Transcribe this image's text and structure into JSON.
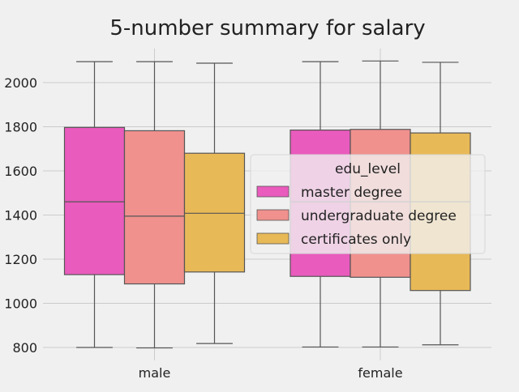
{
  "chart_data": {
    "type": "boxplot",
    "title": "5-number summary for salary",
    "xlabel": "",
    "ylabel": "",
    "categories": [
      "male",
      "female"
    ],
    "yticks": [
      800,
      1000,
      1200,
      1400,
      1600,
      1800,
      2000
    ],
    "ylim": [
      760,
      2160
    ],
    "grid": true,
    "legend": {
      "title": "edu_level",
      "placement": "center-right"
    },
    "series": [
      {
        "name": "master degree",
        "color": "#e95bbc",
        "boxes": [
          {
            "min": 800,
            "q1": 1130,
            "median": 1460,
            "q3": 1797,
            "max": 2095
          },
          {
            "min": 802,
            "q1": 1122,
            "median": 1460,
            "q3": 1785,
            "max": 2095
          }
        ]
      },
      {
        "name": "undergraduate degree",
        "color": "#f0918e",
        "boxes": [
          {
            "min": 798,
            "q1": 1088,
            "median": 1395,
            "q3": 1782,
            "max": 2095
          },
          {
            "min": 802,
            "q1": 1118,
            "median": 1460,
            "q3": 1788,
            "max": 2098
          }
        ]
      },
      {
        "name": "certificates only",
        "color": "#e8b957",
        "boxes": [
          {
            "min": 818,
            "q1": 1142,
            "median": 1408,
            "q3": 1680,
            "max": 2088
          },
          {
            "min": 812,
            "q1": 1058,
            "median": 1460,
            "q3": 1772,
            "max": 2092
          }
        ]
      }
    ]
  }
}
